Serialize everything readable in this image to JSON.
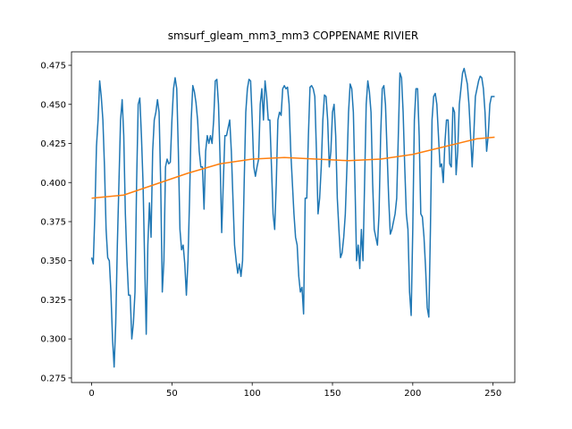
{
  "chart_data": {
    "type": "line",
    "title": "smsurf_gleam_mm3_mm3 COPPENAME RIVIER",
    "x": [
      0,
      1,
      2,
      3,
      4,
      5,
      6,
      7,
      8,
      9,
      10,
      11,
      12,
      13,
      14,
      15,
      16,
      17,
      18,
      19,
      20,
      21,
      22,
      23,
      24,
      25,
      26,
      27,
      28,
      29,
      30,
      31,
      32,
      33,
      34,
      35,
      36,
      37,
      38,
      39,
      40,
      41,
      42,
      43,
      44,
      45,
      46,
      47,
      48,
      49,
      50,
      51,
      52,
      53,
      54,
      55,
      56,
      57,
      58,
      59,
      60,
      61,
      62,
      63,
      64,
      65,
      66,
      67,
      68,
      69,
      70,
      71,
      72,
      73,
      74,
      75,
      76,
      77,
      78,
      79,
      80,
      81,
      82,
      83,
      84,
      85,
      86,
      87,
      88,
      89,
      90,
      91,
      92,
      93,
      94,
      95,
      96,
      97,
      98,
      99,
      100,
      101,
      102,
      103,
      104,
      105,
      106,
      107,
      108,
      109,
      110,
      111,
      112,
      113,
      114,
      115,
      116,
      117,
      118,
      119,
      120,
      121,
      122,
      123,
      124,
      125,
      126,
      127,
      128,
      129,
      130,
      131,
      132,
      133,
      134,
      135,
      136,
      137,
      138,
      139,
      140,
      141,
      142,
      143,
      144,
      145,
      146,
      147,
      148,
      149,
      150,
      151,
      152,
      153,
      154,
      155,
      156,
      157,
      158,
      159,
      160,
      161,
      162,
      163,
      164,
      165,
      166,
      167,
      168,
      169,
      170,
      171,
      172,
      173,
      174,
      175,
      176,
      177,
      178,
      179,
      180,
      181,
      182,
      183,
      184,
      185,
      186,
      187,
      188,
      189,
      190,
      191,
      192,
      193,
      194,
      195,
      196,
      197,
      198,
      199,
      200,
      201,
      202,
      203,
      204,
      205,
      206,
      207,
      208,
      209,
      210,
      211,
      212,
      213,
      214,
      215,
      216,
      217,
      218,
      219,
      220,
      221,
      222,
      223,
      224,
      225,
      226,
      227,
      228,
      229,
      230,
      231,
      232,
      233,
      234,
      235,
      236,
      237,
      238,
      239,
      240,
      241,
      242,
      243,
      244,
      245,
      246,
      247,
      248,
      249,
      250,
      251
    ],
    "series": [
      {
        "color": "#1f77b4",
        "values": [
          0.352,
          0.348,
          0.38,
          0.423,
          0.44,
          0.465,
          0.455,
          0.44,
          0.41,
          0.37,
          0.352,
          0.35,
          0.33,
          0.3,
          0.282,
          0.31,
          0.36,
          0.4,
          0.44,
          0.453,
          0.43,
          0.38,
          0.35,
          0.328,
          0.328,
          0.3,
          0.31,
          0.33,
          0.4,
          0.45,
          0.454,
          0.43,
          0.4,
          0.35,
          0.303,
          0.36,
          0.387,
          0.365,
          0.42,
          0.44,
          0.445,
          0.453,
          0.445,
          0.4,
          0.33,
          0.35,
          0.41,
          0.415,
          0.412,
          0.413,
          0.44,
          0.46,
          0.467,
          0.46,
          0.42,
          0.37,
          0.357,
          0.36,
          0.348,
          0.328,
          0.35,
          0.39,
          0.44,
          0.462,
          0.458,
          0.451,
          0.44,
          0.42,
          0.41,
          0.41,
          0.383,
          0.42,
          0.43,
          0.425,
          0.43,
          0.425,
          0.44,
          0.465,
          0.466,
          0.45,
          0.415,
          0.368,
          0.4,
          0.43,
          0.43,
          0.435,
          0.44,
          0.42,
          0.39,
          0.36,
          0.35,
          0.342,
          0.348,
          0.34,
          0.35,
          0.4,
          0.445,
          0.46,
          0.466,
          0.465,
          0.44,
          0.41,
          0.404,
          0.41,
          0.415,
          0.45,
          0.46,
          0.44,
          0.465,
          0.455,
          0.44,
          0.44,
          0.41,
          0.38,
          0.37,
          0.4,
          0.44,
          0.445,
          0.443,
          0.46,
          0.462,
          0.46,
          0.461,
          0.45,
          0.42,
          0.4,
          0.38,
          0.365,
          0.36,
          0.34,
          0.33,
          0.333,
          0.316,
          0.39,
          0.39,
          0.43,
          0.461,
          0.462,
          0.46,
          0.455,
          0.42,
          0.38,
          0.39,
          0.41,
          0.44,
          0.456,
          0.455,
          0.44,
          0.41,
          0.42,
          0.445,
          0.45,
          0.43,
          0.39,
          0.37,
          0.352,
          0.355,
          0.365,
          0.38,
          0.41,
          0.445,
          0.463,
          0.46,
          0.445,
          0.4,
          0.35,
          0.36,
          0.345,
          0.37,
          0.35,
          0.4,
          0.45,
          0.465,
          0.458,
          0.445,
          0.4,
          0.37,
          0.365,
          0.36,
          0.38,
          0.43,
          0.46,
          0.462,
          0.45,
          0.42,
          0.39,
          0.367,
          0.37,
          0.375,
          0.38,
          0.39,
          0.43,
          0.47,
          0.467,
          0.445,
          0.41,
          0.38,
          0.37,
          0.33,
          0.315,
          0.37,
          0.44,
          0.46,
          0.46,
          0.43,
          0.38,
          0.378,
          0.365,
          0.345,
          0.32,
          0.314,
          0.37,
          0.44,
          0.455,
          0.457,
          0.45,
          0.43,
          0.41,
          0.412,
          0.4,
          0.425,
          0.44,
          0.44,
          0.412,
          0.41,
          0.448,
          0.445,
          0.405,
          0.42,
          0.45,
          0.46,
          0.47,
          0.473,
          0.468,
          0.463,
          0.45,
          0.43,
          0.41,
          0.43,
          0.455,
          0.46,
          0.465,
          0.468,
          0.467,
          0.46,
          0.445,
          0.42,
          0.43,
          0.45,
          0.455,
          0.455,
          0.455
        ]
      },
      {
        "color": "#ff7f0e",
        "x": [
          0,
          20,
          40,
          60,
          80,
          100,
          120,
          140,
          160,
          180,
          200,
          220,
          240,
          251
        ],
        "values": [
          0.39,
          0.392,
          0.399,
          0.406,
          0.412,
          0.415,
          0.416,
          0.415,
          0.414,
          0.415,
          0.418,
          0.423,
          0.428,
          0.429
        ]
      }
    ],
    "xlim": [
      -12.55,
      263.55
    ],
    "xticks": [
      0,
      50,
      100,
      150,
      200,
      250
    ],
    "ylim": [
      0.2721,
      0.4836
    ],
    "yticks": [
      0.275,
      {
        "value": 0.3,
        "label": "0.300"
      },
      0.325,
      {
        "value": 0.35,
        "label": "0.350"
      },
      0.375,
      {
        "value": 0.4,
        "label": "0.400"
      },
      0.425,
      {
        "value": 0.45,
        "label": "0.450"
      },
      0.475
    ]
  }
}
